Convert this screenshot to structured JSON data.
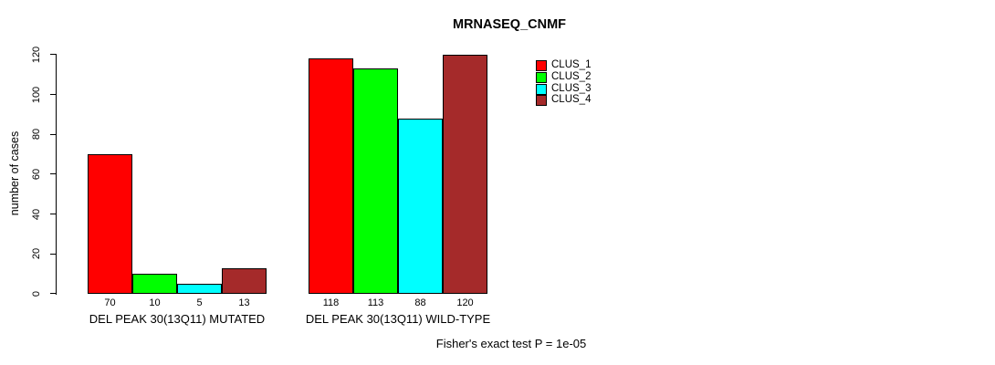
{
  "chart_data": {
    "type": "bar",
    "title": "MRNASEQ_CNMF",
    "ylabel": "number of cases",
    "xlabel": "",
    "ylim": [
      0,
      120
    ],
    "yticks": [
      0,
      20,
      40,
      60,
      80,
      100,
      120
    ],
    "grid": false,
    "legend_position": "right-of-plot-top",
    "categories": [
      "DEL PEAK 30(13Q11) MUTATED",
      "DEL PEAK 30(13Q11) WILD-TYPE"
    ],
    "groups": [
      {
        "label": "DEL PEAK 30(13Q11) MUTATED",
        "values": [
          70,
          10,
          5,
          13
        ],
        "value_labels": [
          "70",
          "10",
          "5",
          "13"
        ]
      },
      {
        "label": "DEL PEAK 30(13Q11) WILD-TYPE",
        "values": [
          118,
          113,
          88,
          120
        ],
        "value_labels": [
          "118",
          "113",
          "88",
          "120"
        ]
      }
    ],
    "series": [
      {
        "name": "CLUS_1",
        "color": "#FF0000"
      },
      {
        "name": "CLUS_2",
        "color": "#00FF00"
      },
      {
        "name": "CLUS_3",
        "color": "#00FFFF"
      },
      {
        "name": "CLUS_4",
        "color": "#A52A2A"
      }
    ],
    "footer": "Fisher's exact test P = 1e-05",
    "axis_color": "#000000",
    "bar_border_color": "#000000"
  }
}
